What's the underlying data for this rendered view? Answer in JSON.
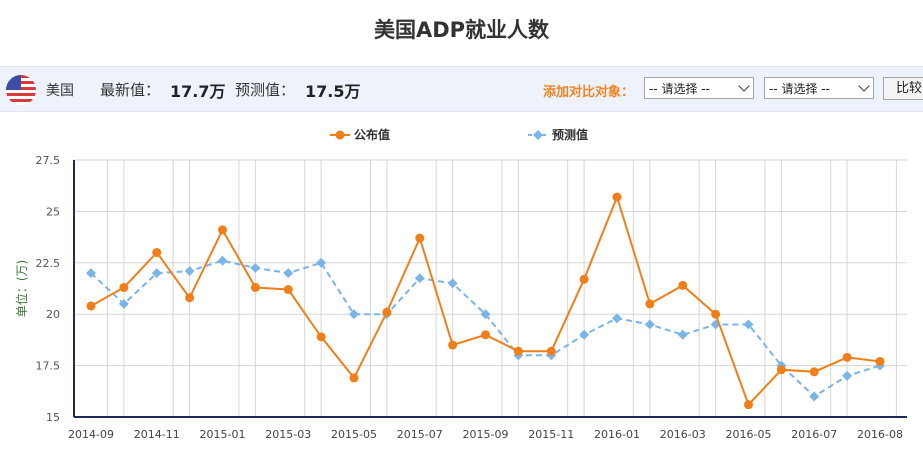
{
  "page": {
    "title": "美国ADP就业人数"
  },
  "infobar": {
    "country": "美国",
    "latest_label": "最新值：",
    "latest_value": "17.7万",
    "forecast_label": "预测值：",
    "forecast_value": "17.5万",
    "compare_label": "添加对比对象：",
    "select1": "-- 请选择 --",
    "select2": "-- 请选择 --",
    "compare_button": "比较"
  },
  "chart_data": {
    "type": "line",
    "ylabel": "单位：(万)",
    "ylim": [
      15,
      27.5
    ],
    "yticks": [
      "15",
      "17.5",
      "20",
      "22.5",
      "25",
      "27.5"
    ],
    "xtick_labels": [
      "2014-09",
      "2014-11",
      "2015-01",
      "2015-03",
      "2015-05",
      "2015-07",
      "2015-09",
      "2015-11",
      "2016-01",
      "2016-03",
      "2016-05",
      "2016-07",
      "2016-08"
    ],
    "grid": true,
    "legend_position": "top-center",
    "series": [
      {
        "name": "公布值",
        "color": "#f07f1a",
        "style": "solid",
        "values": [
          20.4,
          21.3,
          23.0,
          20.8,
          24.1,
          21.3,
          21.2,
          18.9,
          16.9,
          20.1,
          23.7,
          18.5,
          19.0,
          18.2,
          18.2,
          21.7,
          25.7,
          20.5,
          21.4,
          20.0,
          15.6,
          17.3,
          17.2,
          17.9,
          17.7
        ]
      },
      {
        "name": "预测值",
        "color": "#7ab4e8",
        "style": "dashed",
        "values": [
          22.0,
          20.5,
          22.0,
          22.1,
          22.6,
          22.25,
          22.0,
          22.5,
          20.0,
          20.0,
          21.75,
          21.5,
          20.0,
          18.0,
          18.0,
          19.0,
          19.8,
          19.5,
          19.0,
          19.5,
          19.5,
          17.5,
          16.0,
          17.0,
          17.5
        ]
      }
    ]
  }
}
